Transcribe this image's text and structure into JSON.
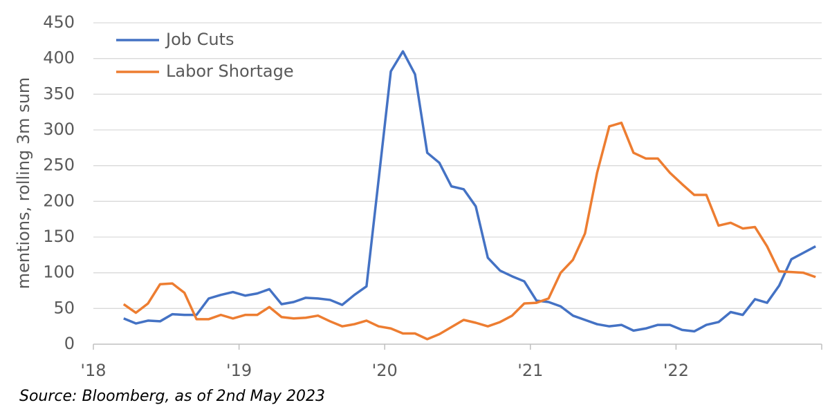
{
  "chart_data": {
    "type": "line",
    "y_label": "mentions, rolling 3m sum",
    "source": "Source: Bloomberg, as of 2nd May 2023",
    "x": [
      2018.208,
      2018.292,
      2018.375,
      2018.458,
      2018.542,
      2018.625,
      2018.708,
      2018.792,
      2018.875,
      2018.958,
      2019.042,
      2019.125,
      2019.208,
      2019.292,
      2019.375,
      2019.458,
      2019.542,
      2019.625,
      2019.708,
      2019.792,
      2019.875,
      2019.958,
      2020.042,
      2020.125,
      2020.208,
      2020.292,
      2020.375,
      2020.458,
      2020.542,
      2020.625,
      2020.708,
      2020.792,
      2020.875,
      2020.958,
      2021.042,
      2021.125,
      2021.208,
      2021.292,
      2021.375,
      2021.458,
      2021.542,
      2021.625,
      2021.708,
      2021.792,
      2021.875,
      2021.958,
      2022.042,
      2022.125,
      2022.208,
      2022.292,
      2022.375,
      2022.458,
      2022.542,
      2022.625,
      2022.708,
      2022.792,
      2022.875,
      2022.958
    ],
    "series": [
      {
        "name": "Job Cuts",
        "color": "#4472c4",
        "values": [
          36,
          29,
          33,
          32,
          42,
          41,
          41,
          64,
          69,
          73,
          68,
          71,
          77,
          56,
          59,
          65,
          64,
          62,
          55,
          69,
          81,
          230,
          382,
          410,
          378,
          268,
          254,
          221,
          217,
          193,
          121,
          103,
          95,
          88,
          61,
          59,
          53,
          40,
          34,
          28,
          25,
          27,
          19,
          22,
          27,
          27,
          20,
          18,
          27,
          31,
          45,
          41,
          63,
          58,
          82,
          119,
          128,
          137
        ]
      },
      {
        "name": "Labor Shortage",
        "color": "#ed7d31",
        "values": [
          56,
          44,
          57,
          84,
          85,
          72,
          35,
          35,
          41,
          36,
          41,
          41,
          52,
          38,
          36,
          37,
          40,
          32,
          25,
          28,
          33,
          25,
          22,
          15,
          15,
          7,
          14,
          24,
          34,
          30,
          25,
          31,
          40,
          57,
          58,
          64,
          100,
          118,
          155,
          240,
          305,
          310,
          268,
          260,
          260,
          240,
          224,
          209,
          209,
          166,
          170,
          162,
          164,
          137,
          102,
          101,
          100,
          94
        ]
      }
    ],
    "xlim": [
      2018,
      2023
    ],
    "xticks": [
      {
        "value": 2018,
        "label": "'18"
      },
      {
        "value": 2019,
        "label": "'19"
      },
      {
        "value": 2020,
        "label": "'20"
      },
      {
        "value": 2021,
        "label": "'21"
      },
      {
        "value": 2022,
        "label": "'22"
      }
    ],
    "ylim": [
      0,
      450
    ],
    "yticks": [
      0,
      50,
      100,
      150,
      200,
      250,
      300,
      350,
      400,
      450
    ],
    "grid": true
  }
}
